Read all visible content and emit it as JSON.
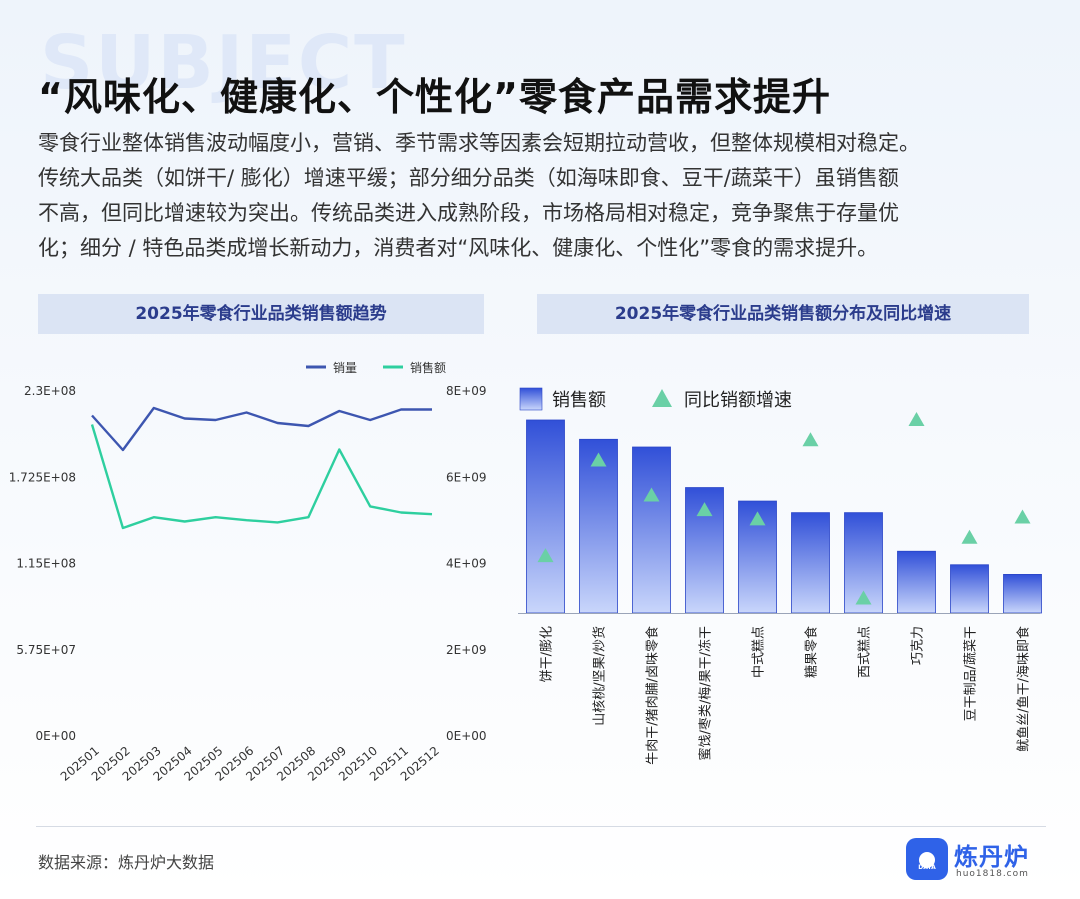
{
  "header": {
    "bg_word": "SUBJECT",
    "title": "“风味化、健康化、个性化”零食产品需求提升",
    "desc_lines": [
      "零食行业整体销售波动幅度小，营销、季节需求等因素会短期拉动营收，但整体规模相对稳定。",
      "传统大品类（如饼干/  膨化）增速平缓；部分细分品类（如海味即食、豆干/蔬菜干）虽销售额",
      "不高，但同比增速较为突出。传统品类进入成熟阶段，市场格局相对稳定，竞争聚焦于存量优",
      "化；细分 / 特色品类成增长新动力，消费者对“风味化、健康化、个性化”零食的需求提升。"
    ]
  },
  "chart_data": [
    {
      "type": "line",
      "title": "2025年零食行业品类销售额趋势",
      "x": [
        "202501",
        "202502",
        "202503",
        "202504",
        "202505",
        "202506",
        "202507",
        "202508",
        "202509",
        "202510",
        "202511",
        "202512"
      ],
      "series": [
        {
          "name": "销量",
          "axis": "left",
          "color": "#3d56b0",
          "values": [
            213000000,
            190000000,
            218000000,
            211000000,
            210000000,
            215000000,
            208000000,
            206000000,
            216000000,
            210000000,
            217000000,
            217000000
          ]
        },
        {
          "name": "销售额",
          "axis": "right",
          "color": "#2ecf9f",
          "values": [
            7200000000,
            4800000000,
            5050000000,
            4950000000,
            5050000000,
            4980000000,
            4930000000,
            5050000000,
            6620000000,
            5300000000,
            5160000000,
            5120000000
          ]
        }
      ],
      "y_left": {
        "ticks": [
          "2.3E+08",
          "1.725E+08",
          "1.15E+08",
          "5.75E+07",
          "0E+00"
        ],
        "range": [
          0,
          230000000
        ]
      },
      "y_right": {
        "ticks": [
          "8E+09",
          "6E+09",
          "4E+09",
          "2E+09",
          "0E+00"
        ],
        "range": [
          0,
          8000000000
        ]
      },
      "legend": "top-right"
    },
    {
      "type": "bar",
      "title": "2025年零食行业品类销售额分布及同比增速",
      "categories": [
        "饼干/膨化",
        "山核桃/坚果/炒货",
        "牛肉干/猪肉脯/卤味零食",
        "蜜饯/枣类/梅/果干/冻干",
        "中式糕点",
        "糖果零食",
        "西式糕点",
        "巧克力",
        "豆干制品/蔬菜干",
        "鱿鱼丝/鱼干/海味即食"
      ],
      "series": [
        {
          "name": "销售额",
          "type": "bar",
          "values": [
            1.0,
            0.9,
            0.86,
            0.65,
            0.58,
            0.52,
            0.52,
            0.32,
            0.25,
            0.2
          ]
        },
        {
          "name": "同比销额增速",
          "type": "scatter",
          "marker": "triangle",
          "values": [
            0.26,
            0.78,
            0.59,
            0.51,
            0.46,
            0.89,
            0.03,
            1.0,
            0.36,
            0.47
          ]
        }
      ],
      "legend": "top-left",
      "colors": {
        "bar_top": "#3150d8",
        "bar_bottom": "#c9d6fb",
        "marker": "#6ad0a6"
      }
    }
  ],
  "footer": {
    "source": "数据来源：炼丹炉大数据",
    "logo_name": "炼丹炉",
    "logo_tag": "DATA",
    "logo_site": "huo1818.com"
  }
}
